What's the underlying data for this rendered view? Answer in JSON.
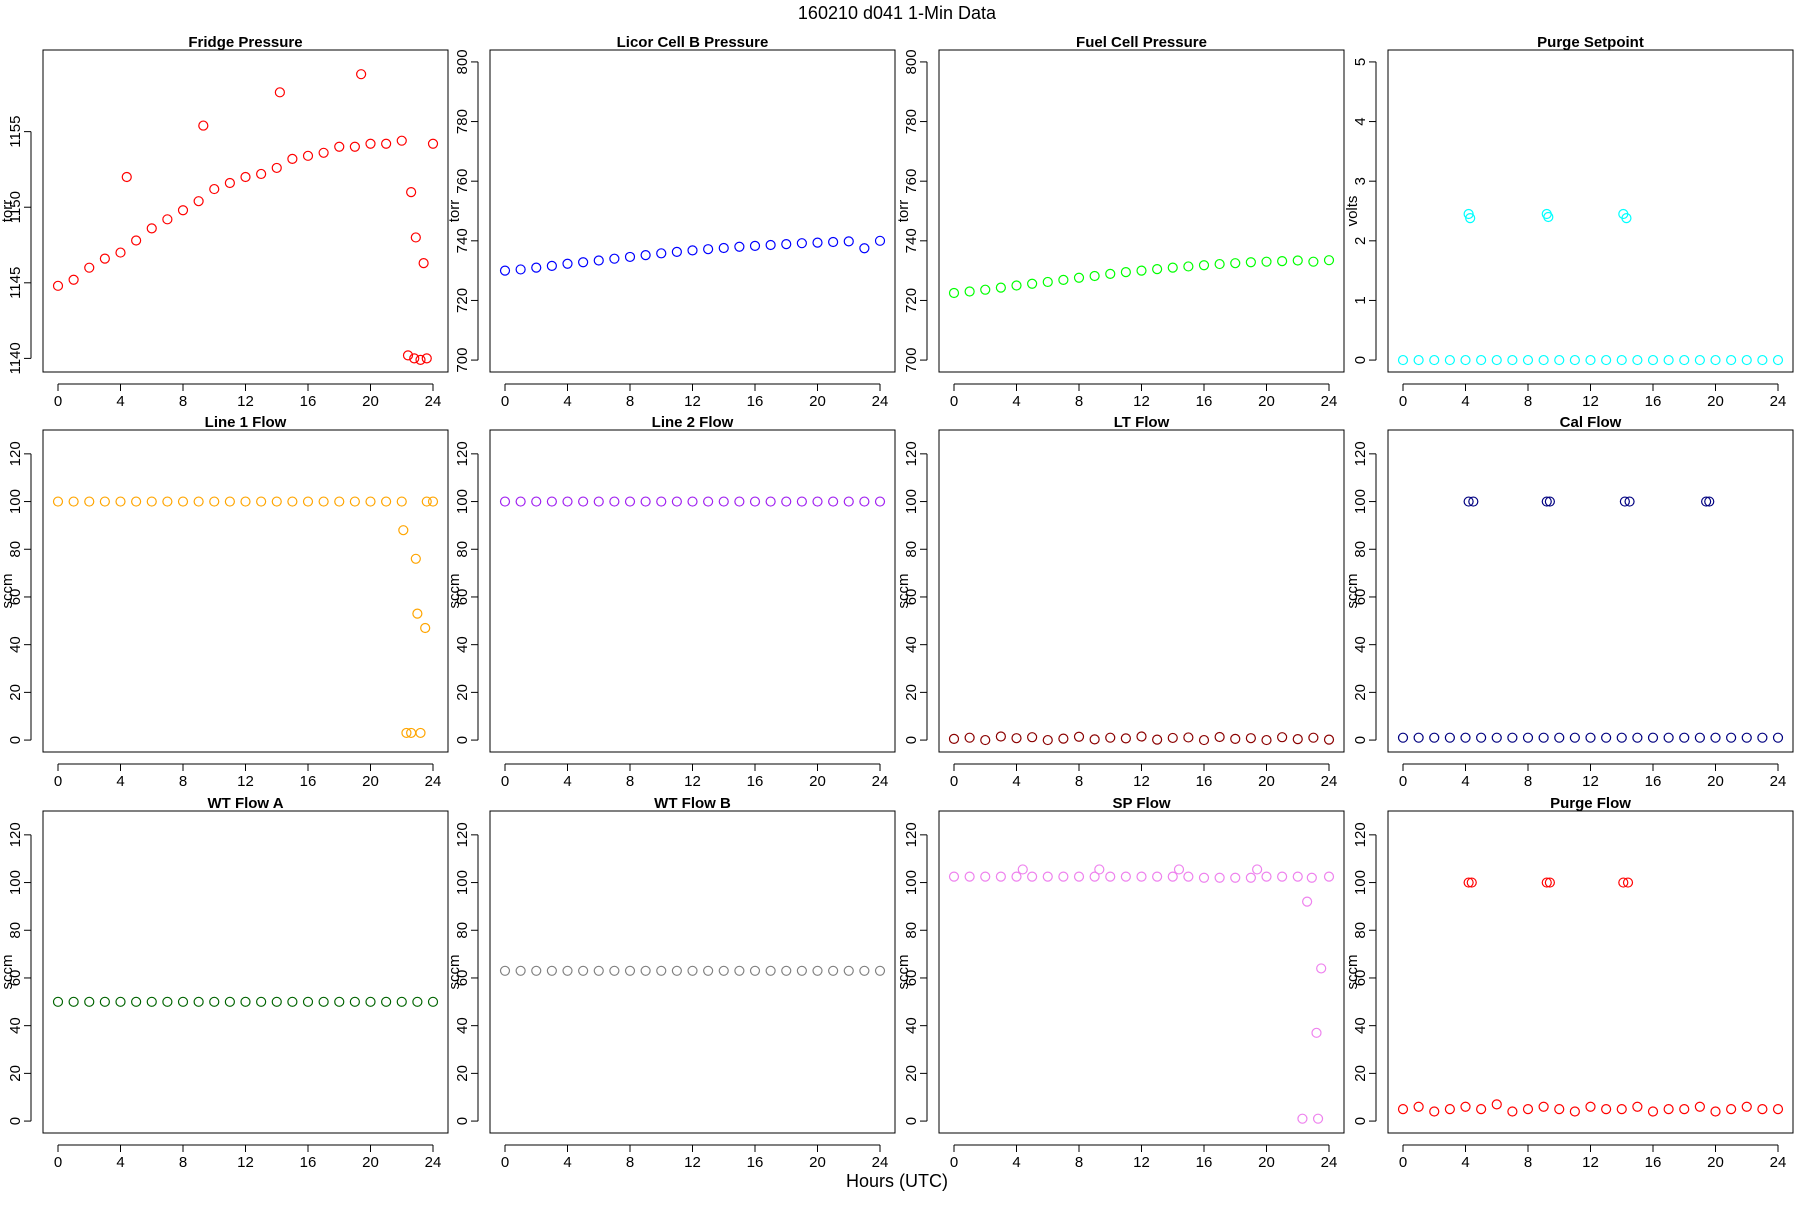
{
  "title": "160210   d041   1-Min Data",
  "xlabel": "Hours (UTC)",
  "chart_data": [
    {
      "type": "scatter",
      "title": "Fridge Pressure",
      "ylabel": "torr",
      "color": "#ff0000",
      "xlim": [
        -0.96,
        24.96
      ],
      "xticks": [
        0,
        4,
        8,
        12,
        16,
        20,
        24
      ],
      "ylim": [
        1139.1,
        1160.4
      ],
      "yticks": [
        1140,
        1145,
        1150,
        1155
      ],
      "x": [
        0,
        1,
        2,
        3,
        4,
        4.4,
        5,
        6,
        7,
        8,
        9,
        9.3,
        10,
        11,
        12,
        13,
        14,
        14.2,
        15,
        16,
        17,
        18,
        19,
        19.4,
        20,
        21,
        22,
        22.4,
        22.6,
        22.8,
        22.9,
        23.2,
        23.4,
        23.6,
        24
      ],
      "values": [
        1144.8,
        1145.2,
        1146,
        1146.6,
        1147,
        1152,
        1147.8,
        1148.6,
        1149.2,
        1149.8,
        1150.4,
        1155.4,
        1151.2,
        1151.6,
        1152,
        1152.2,
        1152.6,
        1157.6,
        1153.2,
        1153.4,
        1153.6,
        1154,
        1154,
        1158.8,
        1154.2,
        1154.2,
        1154.4,
        1140.2,
        1151,
        1140,
        1148,
        1139.9,
        1146.3,
        1140,
        1154.2
      ]
    },
    {
      "type": "scatter",
      "title": "Licor Cell B Pressure",
      "ylabel": "torr",
      "color": "#0000ff",
      "xlim": [
        -0.96,
        24.96
      ],
      "xticks": [
        0,
        4,
        8,
        12,
        16,
        20,
        24
      ],
      "ylim": [
        696,
        804
      ],
      "yticks": [
        700,
        720,
        740,
        760,
        780,
        800
      ],
      "x": [
        0,
        1,
        2,
        3,
        4,
        5,
        6,
        7,
        8,
        9,
        10,
        11,
        12,
        13,
        14,
        15,
        16,
        17,
        18,
        19,
        20,
        21,
        22,
        23,
        24
      ],
      "values": [
        730,
        730.4,
        731,
        731.6,
        732.3,
        732.8,
        733.4,
        734,
        734.6,
        735.2,
        735.8,
        736.3,
        736.8,
        737.2,
        737.6,
        738,
        738.3,
        738.6,
        738.9,
        739.2,
        739.4,
        739.6,
        739.8,
        737.5,
        740
      ]
    },
    {
      "type": "scatter",
      "title": "Fuel Cell Pressure",
      "ylabel": "torr",
      "color": "#00ff00",
      "xlim": [
        -0.96,
        24.96
      ],
      "xticks": [
        0,
        4,
        8,
        12,
        16,
        20,
        24
      ],
      "ylim": [
        696,
        804
      ],
      "yticks": [
        700,
        720,
        740,
        760,
        780,
        800
      ],
      "x": [
        0,
        1,
        2,
        3,
        4,
        5,
        6,
        7,
        8,
        9,
        10,
        11,
        12,
        13,
        14,
        15,
        16,
        17,
        18,
        19,
        20,
        21,
        22,
        23,
        24
      ],
      "values": [
        722.5,
        723,
        723.6,
        724.3,
        725,
        725.6,
        726.2,
        726.9,
        727.6,
        728.2,
        728.9,
        729.5,
        730,
        730.5,
        731,
        731.4,
        731.8,
        732.2,
        732.5,
        732.8,
        733,
        733.2,
        733.4,
        733,
        733.5
      ]
    },
    {
      "type": "scatter",
      "title": "Purge Setpoint",
      "ylabel": "volts",
      "color": "#00ffff",
      "xlim": [
        -0.96,
        24.96
      ],
      "xticks": [
        0,
        4,
        8,
        12,
        16,
        20,
        24
      ],
      "ylim": [
        -0.2,
        5.2
      ],
      "yticks": [
        0,
        1,
        2,
        3,
        4,
        5
      ],
      "x": [
        0,
        1,
        2,
        3,
        4,
        4.2,
        4.3,
        5,
        6,
        7,
        8,
        9,
        9.2,
        9.3,
        10,
        11,
        12,
        13,
        14,
        14.1,
        14.3,
        15,
        16,
        17,
        18,
        19,
        20,
        21,
        22,
        23,
        24
      ],
      "values": [
        0,
        0,
        0,
        0,
        0,
        2.45,
        2.38,
        0,
        0,
        0,
        0,
        0,
        2.45,
        2.4,
        0,
        0,
        0,
        0,
        0,
        2.45,
        2.38,
        0,
        0,
        0,
        0,
        0,
        0,
        0,
        0,
        0,
        0
      ]
    },
    {
      "type": "scatter",
      "title": "Line 1 Flow",
      "ylabel": "sccm",
      "color": "#ffa500",
      "xlim": [
        -0.96,
        24.96
      ],
      "xticks": [
        0,
        4,
        8,
        12,
        16,
        20,
        24
      ],
      "ylim": [
        -5,
        130
      ],
      "yticks": [
        0,
        20,
        40,
        60,
        80,
        100,
        120
      ],
      "x": [
        0,
        1,
        2,
        3,
        4,
        5,
        6,
        7,
        8,
        9,
        10,
        11,
        12,
        13,
        14,
        15,
        16,
        17,
        18,
        19,
        20,
        21,
        22,
        22.1,
        22.3,
        22.6,
        22.9,
        23,
        23.2,
        23.5,
        23.6,
        24
      ],
      "values": [
        100,
        100,
        100,
        100,
        100,
        100,
        100,
        100,
        100,
        100,
        100,
        100,
        100,
        100,
        100,
        100,
        100,
        100,
        100,
        100,
        100,
        100,
        100,
        88,
        3,
        3,
        76,
        53,
        3,
        47,
        100,
        100
      ]
    },
    {
      "type": "scatter",
      "title": "Line 2 Flow",
      "ylabel": "sccm",
      "color": "#a020f0",
      "xlim": [
        -0.96,
        24.96
      ],
      "xticks": [
        0,
        4,
        8,
        12,
        16,
        20,
        24
      ],
      "ylim": [
        -5,
        130
      ],
      "yticks": [
        0,
        20,
        40,
        60,
        80,
        100,
        120
      ],
      "x": [
        0,
        1,
        2,
        3,
        4,
        5,
        6,
        7,
        8,
        9,
        10,
        11,
        12,
        13,
        14,
        15,
        16,
        17,
        18,
        19,
        20,
        21,
        22,
        23,
        24
      ],
      "values": [
        100,
        100,
        100,
        100,
        100,
        100,
        100,
        100,
        100,
        100,
        100,
        100,
        100,
        100,
        100,
        100,
        100,
        100,
        100,
        100,
        100,
        100,
        100,
        100,
        100
      ]
    },
    {
      "type": "scatter",
      "title": "LT Flow",
      "ylabel": "sccm",
      "color": "#8b0000",
      "xlim": [
        -0.96,
        24.96
      ],
      "xticks": [
        0,
        4,
        8,
        12,
        16,
        20,
        24
      ],
      "ylim": [
        -5,
        130
      ],
      "yticks": [
        0,
        20,
        40,
        60,
        80,
        100,
        120
      ],
      "x": [
        0,
        1,
        2,
        3,
        4,
        5,
        6,
        7,
        8,
        9,
        10,
        11,
        12,
        13,
        14,
        15,
        16,
        17,
        18,
        19,
        20,
        21,
        22,
        23,
        24
      ],
      "values": [
        0.5,
        1,
        0,
        1.5,
        0.8,
        1.2,
        0,
        0.6,
        1.4,
        0.3,
        1,
        0.7,
        1.5,
        0.2,
        0.9,
        1.1,
        0,
        1.3,
        0.5,
        0.8,
        0,
        1.2,
        0.4,
        1,
        0.2
      ]
    },
    {
      "type": "scatter",
      "title": "Cal Flow",
      "ylabel": "sccm",
      "color": "#000080",
      "xlim": [
        -0.96,
        24.96
      ],
      "xticks": [
        0,
        4,
        8,
        12,
        16,
        20,
        24
      ],
      "ylim": [
        -5,
        130
      ],
      "yticks": [
        0,
        20,
        40,
        60,
        80,
        100,
        120
      ],
      "x": [
        0,
        1,
        2,
        3,
        4,
        4.2,
        4.5,
        5,
        6,
        7,
        8,
        9,
        9.2,
        9.4,
        10,
        11,
        12,
        13,
        14,
        14.2,
        14.5,
        15,
        16,
        17,
        18,
        19,
        19.4,
        19.6,
        20,
        21,
        22,
        23,
        24
      ],
      "values": [
        1,
        1,
        1,
        1,
        1,
        100,
        100,
        1,
        1,
        1,
        1,
        1,
        100,
        100,
        1,
        1,
        1,
        1,
        1,
        100,
        100,
        1,
        1,
        1,
        1,
        1,
        100,
        100,
        1,
        1,
        1,
        1,
        1
      ]
    },
    {
      "type": "scatter",
      "title": "WT Flow A",
      "ylabel": "sccm",
      "color": "#006400",
      "xlim": [
        -0.96,
        24.96
      ],
      "xticks": [
        0,
        4,
        8,
        12,
        16,
        20,
        24
      ],
      "ylim": [
        -5,
        130
      ],
      "yticks": [
        0,
        20,
        40,
        60,
        80,
        100,
        120
      ],
      "x": [
        0,
        1,
        2,
        3,
        4,
        5,
        6,
        7,
        8,
        9,
        10,
        11,
        12,
        13,
        14,
        15,
        16,
        17,
        18,
        19,
        20,
        21,
        22,
        23,
        24
      ],
      "values": [
        50,
        50,
        50,
        50,
        50,
        50,
        50,
        50,
        50,
        50,
        50,
        50,
        50,
        50,
        50,
        50,
        50,
        50,
        50,
        50,
        50,
        50,
        50,
        50,
        50
      ]
    },
    {
      "type": "scatter",
      "title": "WT Flow B",
      "ylabel": "sccm",
      "color": "#808080",
      "xlim": [
        -0.96,
        24.96
      ],
      "xticks": [
        0,
        4,
        8,
        12,
        16,
        20,
        24
      ],
      "ylim": [
        -5,
        130
      ],
      "yticks": [
        0,
        20,
        40,
        60,
        80,
        100,
        120
      ],
      "x": [
        0,
        1,
        2,
        3,
        4,
        5,
        6,
        7,
        8,
        9,
        10,
        11,
        12,
        13,
        14,
        15,
        16,
        17,
        18,
        19,
        20,
        21,
        22,
        23,
        24
      ],
      "values": [
        63,
        63,
        63,
        63,
        63,
        63,
        63,
        63,
        63,
        63,
        63,
        63,
        63,
        63,
        63,
        63,
        63,
        63,
        63,
        63,
        63,
        63,
        63,
        63,
        63
      ]
    },
    {
      "type": "scatter",
      "title": "SP Flow",
      "ylabel": "sccm",
      "color": "#ee82ee",
      "xlim": [
        -0.96,
        24.96
      ],
      "xticks": [
        0,
        4,
        8,
        12,
        16,
        20,
        24
      ],
      "ylim": [
        -5,
        130
      ],
      "yticks": [
        0,
        20,
        40,
        60,
        80,
        100,
        120
      ],
      "x": [
        0,
        1,
        2,
        3,
        4,
        4.4,
        5,
        6,
        7,
        8,
        9,
        9.3,
        10,
        11,
        12,
        13,
        14,
        14.4,
        15,
        16,
        17,
        18,
        19,
        19.4,
        20,
        21,
        22,
        22.3,
        22.6,
        22.9,
        23.2,
        23.3,
        23.5,
        24
      ],
      "values": [
        102.5,
        102.5,
        102.5,
        102.5,
        102.5,
        105.5,
        102.5,
        102.5,
        102.5,
        102.5,
        102.5,
        105.5,
        102.5,
        102.5,
        102.5,
        102.5,
        102.5,
        105.5,
        102.5,
        102,
        102,
        102,
        102,
        105.5,
        102.5,
        102.5,
        102.5,
        1,
        92,
        102,
        37,
        1,
        64,
        102.5
      ]
    },
    {
      "type": "scatter",
      "title": "Purge Flow",
      "ylabel": "sccm",
      "color": "#ff0000",
      "xlim": [
        -0.96,
        24.96
      ],
      "xticks": [
        0,
        4,
        8,
        12,
        16,
        20,
        24
      ],
      "ylim": [
        -5,
        130
      ],
      "yticks": [
        0,
        20,
        40,
        60,
        80,
        100,
        120
      ],
      "x": [
        0,
        1,
        2,
        3,
        4,
        4.2,
        4.4,
        5,
        6,
        7,
        8,
        9,
        9.2,
        9.4,
        10,
        11,
        12,
        13,
        14,
        14.1,
        14.4,
        15,
        16,
        17,
        18,
        19,
        20,
        21,
        22,
        23,
        24
      ],
      "values": [
        5,
        6,
        4,
        5,
        6,
        100,
        100,
        5,
        7,
        4,
        5,
        6,
        100,
        100,
        5,
        4,
        6,
        5,
        5,
        100,
        100,
        6,
        4,
        5,
        5,
        6,
        4,
        5,
        6,
        5,
        5
      ]
    }
  ]
}
